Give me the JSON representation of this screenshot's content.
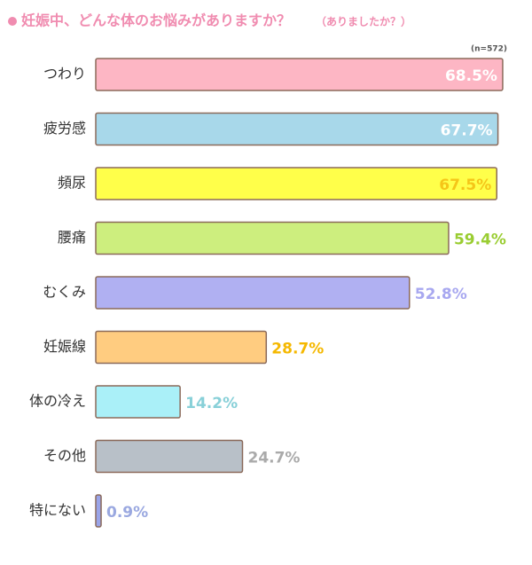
{
  "chart_data": {
    "type": "bar",
    "orientation": "horizontal",
    "title": "妊娠中、どんな体のお悩みがありますか？",
    "subtitle": "（ありましたか？）",
    "annotation": "(n=572)",
    "categories": [
      "つわり",
      "疲労感",
      "頻尿",
      "腰痛",
      "むくみ",
      "妊娠線",
      "体の冷え",
      "その他",
      "特にない"
    ],
    "values": [
      68.5,
      67.7,
      67.5,
      59.4,
      52.8,
      28.7,
      14.2,
      24.7,
      0.9
    ],
    "value_labels": [
      "68.5%",
      "67.7%",
      "67.5%",
      "59.4%",
      "52.8%",
      "28.7%",
      "14.2%",
      "24.7%",
      "0.9%"
    ],
    "colors": [
      "#fdb6c4",
      "#a8d8ea",
      "#ffff4a",
      "#cdee7e",
      "#b0b0f2",
      "#ffcc80",
      "#aaf0f8",
      "#b8c0c8",
      "#9aa4e8"
    ],
    "label_colors": [
      "#ffffff",
      "#ffffff",
      "#f5c518",
      "#9acd32",
      "#a8a8f0",
      "#f5b800",
      "#88d0d8",
      "#aaaaaa",
      "#9aa8e0"
    ]
  }
}
